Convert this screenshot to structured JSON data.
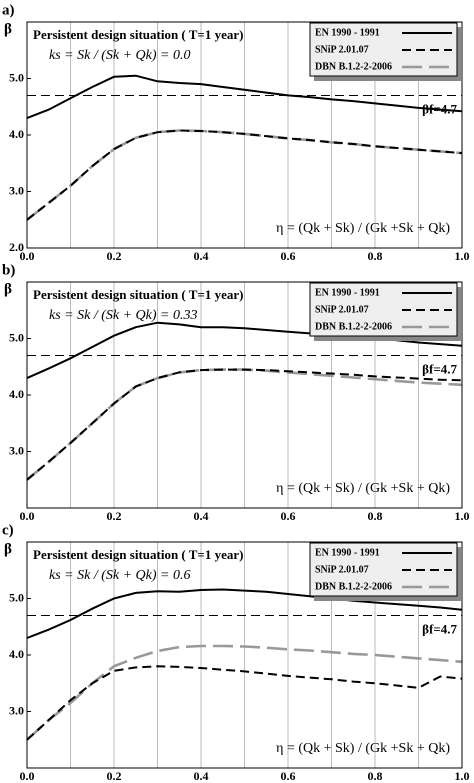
{
  "chart_data": [
    {
      "type": "line",
      "panel_label": "a)",
      "y_label": "β",
      "title": "Persistent design situation ( T=1 year)",
      "subtitle": "ks = Sk / (Sk + Qk) = 0.0",
      "x_label": "η = (Qk + Sk) / (Gk +Sk + Qk)",
      "reference_line": {
        "value": 4.7,
        "label": "βf=4.7",
        "color": "#000000"
      },
      "xlim": [
        0,
        1
      ],
      "ylim": [
        2,
        6
      ],
      "xticks": [
        {
          "value": 0,
          "label": "0.0"
        },
        0.2,
        0.4,
        0.6,
        0.8,
        {
          "value": 1,
          "label": "1.0"
        }
      ],
      "x_minor_ticks": [
        0.1,
        0.3,
        0.5,
        0.7,
        0.9
      ],
      "yticks": [
        {
          "value": 2,
          "label": "2.0"
        },
        {
          "value": 3,
          "label": "3.0"
        },
        {
          "value": 4,
          "label": "4.0"
        },
        {
          "value": 5,
          "label": "5.0"
        }
      ],
      "grid": "x",
      "legend": "top-right",
      "x": [
        0,
        0.05,
        0.1,
        0.15,
        0.2,
        0.25,
        0.3,
        0.35,
        0.4,
        0.45,
        0.5,
        0.55,
        0.6,
        0.65,
        0.7,
        0.75,
        0.8,
        0.85,
        0.9,
        0.95,
        1.0
      ],
      "series": [
        {
          "name": "EN 1990 - 1991",
          "color": "#000000",
          "line_style": "solid",
          "values": [
            4.3,
            4.45,
            4.65,
            4.85,
            5.03,
            5.05,
            4.95,
            4.92,
            4.9,
            4.85,
            4.8,
            4.75,
            4.7,
            4.67,
            4.63,
            4.6,
            4.56,
            4.52,
            4.48,
            4.45,
            4.42
          ]
        },
        {
          "name": "SNiP 2.01.07",
          "color": "#000000",
          "line_style": "dashed",
          "values": [
            2.5,
            2.8,
            3.1,
            3.45,
            3.75,
            3.95,
            4.05,
            4.08,
            4.07,
            4.05,
            4.02,
            3.98,
            3.94,
            3.91,
            3.87,
            3.84,
            3.8,
            3.77,
            3.74,
            3.71,
            3.68
          ]
        },
        {
          "name": "DBN B.1.2-2-2006",
          "color": "#999999",
          "line_style": "long-dashed",
          "values": [
            2.5,
            2.8,
            3.1,
            3.45,
            3.75,
            3.95,
            4.05,
            4.08,
            4.07,
            4.05,
            4.02,
            3.98,
            3.94,
            3.91,
            3.87,
            3.84,
            3.8,
            3.77,
            3.74,
            3.71,
            3.68
          ]
        }
      ]
    },
    {
      "type": "line",
      "panel_label": "b)",
      "y_label": "β",
      "title": "Persistent design situation ( T=1 year)",
      "subtitle": "ks = Sk / (Sk + Qk) = 0.33",
      "x_label": "η = (Qk + Sk) / (Gk +Sk + Qk)",
      "reference_line": {
        "value": 4.7,
        "label": "βf=4.7",
        "color": "#000000"
      },
      "xlim": [
        0,
        1
      ],
      "ylim": [
        2,
        6
      ],
      "xticks": [
        {
          "value": 0,
          "label": "0.0"
        },
        0.2,
        0.4,
        0.6,
        0.8,
        {
          "value": 1,
          "label": "1.0"
        }
      ],
      "x_minor_ticks": [
        0.1,
        0.3,
        0.5,
        0.7,
        0.9
      ],
      "yticks": [
        {
          "value": 3,
          "label": "3.0"
        },
        {
          "value": 4,
          "label": "4.0"
        },
        {
          "value": 5,
          "label": "5.0"
        }
      ],
      "grid": "x",
      "legend": "top-right",
      "x": [
        0,
        0.05,
        0.1,
        0.15,
        0.2,
        0.25,
        0.3,
        0.35,
        0.4,
        0.45,
        0.5,
        0.55,
        0.6,
        0.65,
        0.7,
        0.75,
        0.8,
        0.85,
        0.9,
        0.95,
        1.0
      ],
      "series": [
        {
          "name": "EN 1990 - 1991",
          "color": "#000000",
          "line_style": "solid",
          "values": [
            4.3,
            4.47,
            4.65,
            4.85,
            5.05,
            5.2,
            5.28,
            5.25,
            5.2,
            5.2,
            5.18,
            5.15,
            5.12,
            5.09,
            5.06,
            5.03,
            5.0,
            4.97,
            4.93,
            4.9,
            4.87
          ]
        },
        {
          "name": "SNiP 2.01.07",
          "color": "#000000",
          "line_style": "dashed",
          "values": [
            2.5,
            2.82,
            3.15,
            3.5,
            3.85,
            4.15,
            4.3,
            4.4,
            4.44,
            4.45,
            4.45,
            4.44,
            4.42,
            4.4,
            4.38,
            4.36,
            4.33,
            4.31,
            4.29,
            4.27,
            4.26
          ]
        },
        {
          "name": "DBN B.1.2-2-2006",
          "color": "#999999",
          "line_style": "long-dashed",
          "values": [
            2.5,
            2.82,
            3.15,
            3.5,
            3.85,
            4.15,
            4.3,
            4.4,
            4.44,
            4.45,
            4.45,
            4.43,
            4.4,
            4.37,
            4.34,
            4.31,
            4.28,
            4.25,
            4.22,
            4.2,
            4.18
          ]
        }
      ]
    },
    {
      "type": "line",
      "panel_label": "c)",
      "y_label": "β",
      "title": "Persistent design situation ( T=1 year)",
      "subtitle": "ks = Sk / (Sk + Qk) = 0.6",
      "x_label": "η = (Qk + Sk) / (Gk +Sk + Qk)",
      "reference_line": {
        "value": 4.7,
        "label": "βf=4.7",
        "color": "#000000"
      },
      "xlim": [
        0,
        1
      ],
      "ylim": [
        2,
        6
      ],
      "xticks": [
        {
          "value": 0,
          "label": "0.0"
        },
        0.2,
        0.4,
        0.6,
        0.8,
        {
          "value": 1,
          "label": "1.0"
        }
      ],
      "x_minor_ticks": [
        0.1,
        0.3,
        0.5,
        0.7,
        0.9
      ],
      "yticks": [
        {
          "value": 3,
          "label": "3.0"
        },
        {
          "value": 4,
          "label": "4.0"
        },
        {
          "value": 5,
          "label": "5.0"
        }
      ],
      "grid": "x",
      "legend": "top-right",
      "x": [
        0,
        0.05,
        0.1,
        0.15,
        0.2,
        0.25,
        0.3,
        0.35,
        0.4,
        0.45,
        0.5,
        0.55,
        0.6,
        0.65,
        0.7,
        0.75,
        0.8,
        0.85,
        0.9,
        0.95,
        1.0
      ],
      "series": [
        {
          "name": "EN 1990 - 1991",
          "color": "#000000",
          "line_style": "solid",
          "values": [
            4.3,
            4.45,
            4.62,
            4.82,
            5.0,
            5.1,
            5.13,
            5.12,
            5.15,
            5.16,
            5.14,
            5.12,
            5.08,
            5.04,
            5.0,
            4.96,
            4.93,
            4.9,
            4.87,
            4.84,
            4.8
          ]
        },
        {
          "name": "SNiP 2.01.07",
          "color": "#000000",
          "line_style": "dashed",
          "values": [
            2.5,
            2.85,
            3.2,
            3.5,
            3.72,
            3.78,
            3.8,
            3.79,
            3.77,
            3.74,
            3.71,
            3.67,
            3.63,
            3.6,
            3.57,
            3.53,
            3.5,
            3.46,
            3.42,
            3.62,
            3.58
          ]
        },
        {
          "name": "DBN B.1.2-2-2006",
          "color": "#999999",
          "line_style": "long-dashed",
          "values": [
            2.5,
            2.85,
            3.15,
            3.5,
            3.8,
            3.95,
            4.07,
            4.14,
            4.16,
            4.16,
            4.15,
            4.13,
            4.1,
            4.08,
            4.05,
            4.02,
            4.0,
            3.97,
            3.94,
            3.91,
            3.88
          ]
        }
      ]
    }
  ]
}
